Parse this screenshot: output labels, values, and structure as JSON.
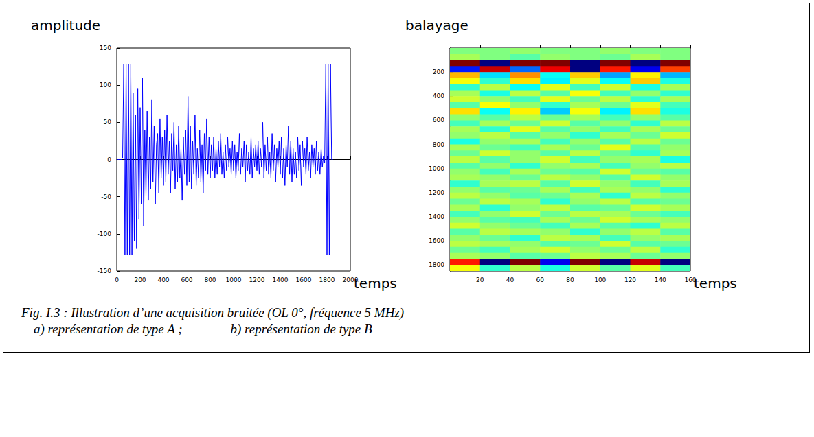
{
  "chart_data": [
    {
      "type": "line",
      "y_label": "amplitude",
      "x_label": "temps",
      "color": "#0000ff",
      "xlim": [
        0,
        2000
      ],
      "ylim": [
        -150,
        150
      ],
      "xticks": [
        0,
        200,
        400,
        600,
        800,
        1000,
        1200,
        1400,
        1600,
        1800,
        2000
      ],
      "yticks": [
        -150,
        -100,
        -50,
        0,
        50,
        100,
        150
      ],
      "x": [
        0,
        10,
        20,
        30,
        40,
        50,
        60,
        70,
        80,
        90,
        100,
        110,
        120,
        130,
        140,
        150,
        160,
        170,
        180,
        190,
        200,
        210,
        220,
        230,
        240,
        250,
        260,
        270,
        280,
        290,
        300,
        310,
        320,
        330,
        340,
        350,
        360,
        370,
        380,
        390,
        400,
        410,
        420,
        430,
        440,
        450,
        460,
        470,
        480,
        490,
        500,
        510,
        520,
        530,
        540,
        550,
        560,
        570,
        580,
        590,
        600,
        610,
        620,
        630,
        640,
        650,
        660,
        670,
        680,
        690,
        700,
        710,
        720,
        730,
        740,
        750,
        760,
        770,
        780,
        790,
        800,
        810,
        820,
        830,
        840,
        850,
        860,
        870,
        880,
        890,
        900,
        910,
        920,
        930,
        940,
        950,
        960,
        970,
        980,
        990,
        1000,
        1010,
        1020,
        1030,
        1040,
        1050,
        1060,
        1070,
        1080,
        1090,
        1100,
        1110,
        1120,
        1130,
        1140,
        1150,
        1160,
        1170,
        1180,
        1190,
        1200,
        1210,
        1220,
        1230,
        1240,
        1250,
        1260,
        1270,
        1280,
        1290,
        1300,
        1310,
        1320,
        1330,
        1340,
        1350,
        1360,
        1370,
        1380,
        1390,
        1400,
        1410,
        1420,
        1430,
        1440,
        1450,
        1460,
        1470,
        1480,
        1490,
        1500,
        1510,
        1520,
        1530,
        1540,
        1550,
        1560,
        1570,
        1580,
        1590,
        1600,
        1610,
        1620,
        1630,
        1640,
        1650,
        1660,
        1670,
        1680,
        1690,
        1700,
        1710,
        1720,
        1730,
        1740,
        1750,
        1760,
        1770,
        1780,
        1790,
        1800,
        1810,
        1820,
        1830,
        1840,
        1850
      ],
      "values": [
        0,
        0,
        0,
        0,
        0,
        2,
        128,
        -128,
        128,
        -128,
        128,
        -128,
        128,
        -128,
        90,
        -110,
        60,
        -120,
        95,
        -80,
        70,
        -60,
        110,
        -90,
        40,
        -50,
        65,
        -55,
        30,
        -40,
        80,
        -30,
        45,
        -60,
        20,
        35,
        -45,
        55,
        -25,
        30,
        -35,
        40,
        -30,
        60,
        -20,
        25,
        -45,
        35,
        -15,
        50,
        -40,
        20,
        -30,
        45,
        -25,
        15,
        -55,
        30,
        -20,
        40,
        -35,
        85,
        -30,
        45,
        -40,
        25,
        -20,
        60,
        -35,
        15,
        -25,
        40,
        -30,
        20,
        -45,
        35,
        -15,
        55,
        -20,
        30,
        -25,
        20,
        -15,
        30,
        -25,
        15,
        -20,
        25,
        -10,
        35,
        -20,
        10,
        -25,
        20,
        -15,
        30,
        -10,
        15,
        -20,
        25,
        -15,
        20,
        -25,
        10,
        -15,
        35,
        -20,
        15,
        -10,
        25,
        -30,
        20,
        -15,
        10,
        -20,
        30,
        -25,
        15,
        -10,
        20,
        -15,
        25,
        -20,
        15,
        -10,
        50,
        -25,
        20,
        -15,
        30,
        -20,
        10,
        -25,
        35,
        -15,
        20,
        -30,
        15,
        -10,
        25,
        -20,
        30,
        -25,
        15,
        -35,
        20,
        -10,
        45,
        -20,
        25,
        -30,
        15,
        -20,
        10,
        -25,
        30,
        -15,
        20,
        -35,
        25,
        -10,
        15,
        -20,
        30,
        -15,
        10,
        -25,
        20,
        -10,
        15,
        -20,
        25,
        -15,
        10,
        -20,
        15,
        -10,
        5,
        -5,
        128,
        -128,
        128,
        -128,
        128,
        0,
        0
      ]
    },
    {
      "type": "heatmap",
      "y_label": "balayage",
      "x_label": "temps",
      "xlim": [
        0,
        160
      ],
      "ylim": [
        0,
        1850
      ],
      "xticks": [
        20,
        40,
        60,
        80,
        100,
        120,
        140,
        160
      ],
      "yticks": [
        200,
        400,
        600,
        800,
        1000,
        1200,
        1400,
        1600,
        1800
      ],
      "color_range": [
        -128,
        128
      ],
      "x_edges": [
        0,
        20,
        40,
        60,
        80,
        100,
        120,
        140,
        160
      ],
      "y_edges": [
        0,
        50,
        100,
        150,
        200,
        250,
        300,
        350,
        400,
        450,
        500,
        550,
        600,
        650,
        700,
        750,
        800,
        850,
        900,
        950,
        1000,
        1050,
        1100,
        1150,
        1200,
        1250,
        1300,
        1350,
        1400,
        1450,
        1500,
        1550,
        1600,
        1650,
        1700,
        1750,
        1800,
        1850
      ],
      "cells": [
        [
          0,
          0,
          5,
          0,
          0,
          5,
          0,
          0
        ],
        [
          10,
          0,
          -10,
          5,
          0,
          -5,
          10,
          0
        ],
        [
          128,
          -128,
          128,
          128,
          -128,
          128,
          -128,
          128
        ],
        [
          -90,
          110,
          -70,
          100,
          -128,
          90,
          -100,
          80
        ],
        [
          50,
          -40,
          60,
          -30,
          45,
          -55,
          35,
          -50
        ],
        [
          30,
          -20,
          40,
          -35,
          25,
          -30,
          45,
          -25
        ],
        [
          -20,
          15,
          -30,
          25,
          -15,
          20,
          -25,
          10
        ],
        [
          10,
          -25,
          15,
          -10,
          30,
          -15,
          5,
          -20
        ],
        [
          20,
          5,
          -15,
          25,
          -5,
          15,
          -20,
          10
        ],
        [
          -10,
          30,
          5,
          -20,
          10,
          -5,
          25,
          -15
        ],
        [
          40,
          -30,
          35,
          -45,
          30,
          -35,
          40,
          -25
        ],
        [
          5,
          -10,
          15,
          -5,
          10,
          -15,
          5,
          -10
        ],
        [
          -15,
          10,
          -5,
          20,
          -10,
          5,
          -20,
          15
        ],
        [
          10,
          -20,
          25,
          -10,
          5,
          -15,
          10,
          -5
        ],
        [
          5,
          15,
          -10,
          5,
          -20,
          10,
          -5,
          20
        ],
        [
          -25,
          5,
          10,
          -15,
          5,
          -10,
          15,
          -5
        ],
        [
          10,
          -5,
          -15,
          10,
          -5,
          25,
          -10,
          5
        ],
        [
          -5,
          20,
          5,
          -10,
          15,
          -5,
          -20,
          10
        ],
        [
          15,
          -10,
          5,
          20,
          -15,
          5,
          10,
          -25
        ],
        [
          -10,
          5,
          -20,
          5,
          10,
          -15,
          5,
          15
        ],
        [
          5,
          -15,
          10,
          -5,
          -10,
          20,
          -5,
          -10
        ],
        [
          10,
          5,
          -5,
          15,
          5,
          -10,
          20,
          5
        ],
        [
          -20,
          10,
          15,
          -10,
          20,
          5,
          -15,
          10
        ],
        [
          5,
          -10,
          -5,
          10,
          -15,
          10,
          5,
          -20
        ],
        [
          15,
          5,
          -10,
          -5,
          10,
          -20,
          15,
          5
        ],
        [
          -5,
          15,
          10,
          -20,
          5,
          15,
          -10,
          -5
        ],
        [
          10,
          -20,
          5,
          15,
          -10,
          -5,
          20,
          10
        ],
        [
          -15,
          5,
          20,
          -5,
          15,
          10,
          -5,
          -15
        ],
        [
          5,
          -10,
          -15,
          10,
          -5,
          20,
          10,
          5
        ],
        [
          20,
          5,
          -5,
          -15,
          10,
          -10,
          -20,
          15
        ],
        [
          -10,
          15,
          10,
          5,
          -20,
          5,
          15,
          -10
        ],
        [
          5,
          -5,
          -20,
          15,
          10,
          -15,
          5,
          10
        ],
        [
          15,
          10,
          5,
          -10,
          -5,
          20,
          -10,
          -5
        ],
        [
          -5,
          -15,
          10,
          20,
          5,
          -5,
          15,
          -20
        ],
        [
          10,
          5,
          -10,
          -5,
          15,
          10,
          -5,
          5
        ],
        [
          90,
          -128,
          128,
          -100,
          128,
          -128,
          110,
          -128
        ],
        [
          30,
          -20,
          15,
          -25,
          20,
          -10,
          25,
          -15
        ]
      ]
    }
  ],
  "caption": {
    "title": "Fig. I.3 : Illustration d’une acquisition bruitée (OL 0°, fréquence 5 MHz)",
    "items": [
      "a)  représentation de type A ;",
      "b)  représentation de type B"
    ]
  }
}
